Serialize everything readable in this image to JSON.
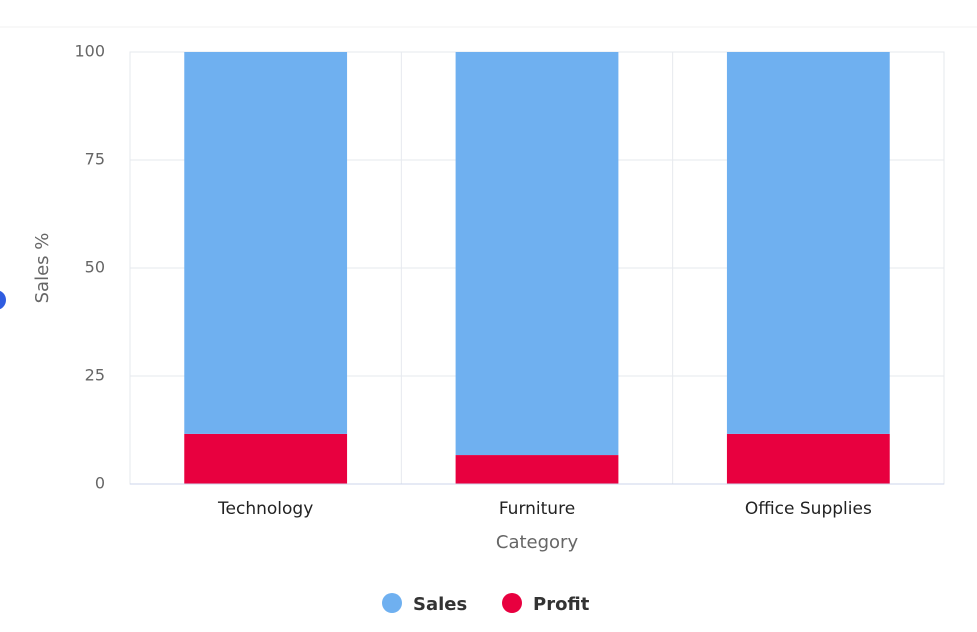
{
  "chart_data": {
    "type": "stacked_bar_100",
    "x_label": "Category",
    "y_label": "Sales %",
    "categories": [
      "Technology",
      "Furniture",
      "Office Supplies"
    ],
    "series": [
      {
        "name": "Sales",
        "color": "#6fb0f0",
        "values": [
          88.4,
          93.3,
          88.4
        ]
      },
      {
        "name": "Profit",
        "color": "#e8003f",
        "values": [
          11.6,
          6.7,
          11.6
        ]
      }
    ],
    "ylim": [
      0,
      100
    ],
    "yticks": [
      0,
      25,
      50,
      75,
      100
    ],
    "grid": true
  }
}
